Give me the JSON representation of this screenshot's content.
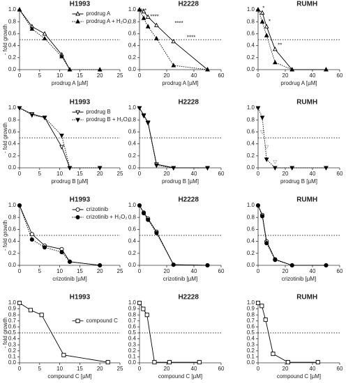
{
  "chart_data": [
    {
      "type": "line",
      "title": "H1993",
      "ylabel": "- fold growth",
      "xlabel": "prodrug A [µM]",
      "xlim": [
        0,
        25
      ],
      "xticks": [
        0,
        5,
        10,
        15,
        20,
        25
      ],
      "ylim": [
        0,
        1
      ],
      "yticks": [
        {
          "value": 0,
          "label": "0.0"
        },
        0.2,
        0.4,
        0.6,
        0.8,
        {
          "value": 1,
          "label": "1.0"
        }
      ],
      "hline": 0.5,
      "legend": "upper-right",
      "series": [
        {
          "name": "prodrug A",
          "color": "#000000",
          "marker": "triangle-up",
          "filled": false,
          "line_style": "solid",
          "x": [
            0,
            3.1,
            6.25,
            10.5,
            12.5
          ],
          "values": [
            1,
            0.72,
            0.6,
            0.25,
            0
          ]
        },
        {
          "name": "prodrug A + H₂O₂",
          "color": "#000000",
          "marker": "triangle-up",
          "filled": true,
          "line_style": "dotted",
          "x": [
            0,
            3.1,
            6.25,
            10.5,
            12.5,
            20
          ],
          "values": [
            1,
            0.68,
            0.52,
            0.22,
            0,
            0
          ]
        }
      ]
    },
    {
      "type": "line",
      "title": "H2228",
      "xlabel": "prodrug A [µM]",
      "xlim": [
        0,
        60
      ],
      "xticks": [
        0,
        20,
        40,
        60
      ],
      "ylim": [
        0,
        1
      ],
      "yticks": [
        {
          "value": 0,
          "label": "0.0"
        },
        0.2,
        0.4,
        0.6,
        0.8,
        {
          "value": 1,
          "label": "1.0"
        }
      ],
      "hline": 0.5,
      "series": [
        {
          "color": "#000000",
          "marker": "triangle-up",
          "filled": false,
          "line_style": "solid",
          "x": [
            0,
            3.1,
            6.25,
            12.5,
            25,
            50
          ],
          "values": [
            1,
            0.97,
            0.88,
            0.74,
            0.47,
            0
          ]
        },
        {
          "color": "#000000",
          "marker": "triangle-up",
          "filled": true,
          "line_style": "dotted",
          "x": [
            0,
            3.1,
            6.25,
            12.5,
            25,
            50
          ],
          "values": [
            1,
            0.86,
            0.72,
            0.52,
            0.07,
            0
          ]
        }
      ],
      "annotations": [
        {
          "text": "****",
          "x": 2,
          "y": 0.98
        },
        {
          "text": "****",
          "x": 11,
          "y": 0.88
        },
        {
          "text": "****",
          "x": 29,
          "y": 0.77
        },
        {
          "text": "****",
          "x": 38,
          "y": 0.53
        }
      ]
    },
    {
      "type": "line",
      "title": "RUMH",
      "xlabel": "prodrug A [µM]",
      "xlim": [
        0,
        60
      ],
      "xticks": [
        0,
        20,
        40,
        60
      ],
      "ylim": [
        0,
        1
      ],
      "yticks": [
        {
          "value": 0,
          "label": "0.0"
        },
        0.2,
        0.4,
        0.6,
        0.8,
        {
          "value": 1,
          "label": "1.0"
        }
      ],
      "hline": 0.5,
      "series": [
        {
          "color": "#000000",
          "marker": "triangle-up",
          "filled": false,
          "line_style": "solid",
          "x": [
            0,
            3.1,
            6.25,
            12.5,
            25,
            50
          ],
          "values": [
            1,
            0.95,
            0.72,
            0.34,
            0,
            0
          ]
        },
        {
          "color": "#000000",
          "marker": "triangle-up",
          "filled": true,
          "line_style": "dotted",
          "x": [
            0,
            3.1,
            6.25,
            12.5,
            25,
            50
          ],
          "values": [
            1,
            0.8,
            0.57,
            0.12,
            0,
            0
          ]
        }
      ],
      "annotations": [
        {
          "text": "*",
          "x": 4,
          "y": 1.02
        },
        {
          "text": "*",
          "x": 8.5,
          "y": 0.8
        },
        {
          "text": "**",
          "x": 16,
          "y": 0.4
        }
      ]
    },
    {
      "type": "line",
      "title": "H1993",
      "ylabel": "- fold growth",
      "xlabel": "prodrug B [µM]",
      "xlim": [
        0,
        25
      ],
      "xticks": [
        0,
        5,
        10,
        15,
        20,
        25
      ],
      "ylim": [
        0,
        1
      ],
      "yticks": [
        {
          "value": 0,
          "label": "0.0"
        },
        0.2,
        0.4,
        0.6,
        0.8,
        {
          "value": 1,
          "label": "1.0"
        }
      ],
      "hline": 0.5,
      "legend": "upper-right",
      "series": [
        {
          "name": "prodrug B",
          "color": "#000000",
          "marker": "triangle-down",
          "filled": false,
          "line_style": "solid",
          "x": [
            0,
            3.1,
            6.25,
            10.5,
            12.5
          ],
          "values": [
            1,
            0.9,
            0.84,
            0.35,
            0
          ]
        },
        {
          "name": "prodrug B + H₂O₂",
          "color": "#000000",
          "marker": "triangle-down",
          "filled": true,
          "line_style": "dotted",
          "x": [
            0,
            3.1,
            6.25,
            10.5,
            12.5,
            20
          ],
          "values": [
            1,
            0.88,
            0.84,
            0.54,
            0,
            0
          ]
        }
      ]
    },
    {
      "type": "line",
      "title": "H2228",
      "xlabel": "prodrug B [µM]",
      "xlim": [
        0,
        60
      ],
      "xticks": [
        0,
        20,
        40,
        60
      ],
      "ylim": [
        0,
        1
      ],
      "yticks": [
        {
          "value": 0,
          "label": "0.0"
        },
        0.2,
        0.4,
        0.6,
        0.8,
        {
          "value": 1,
          "label": "1.0"
        }
      ],
      "hline": 0.5,
      "series": [
        {
          "color": "#000000",
          "marker": "triangle-down",
          "filled": false,
          "line_style": "solid",
          "x": [
            0,
            3.1,
            6.25,
            12.5,
            25,
            50
          ],
          "values": [
            1,
            0.88,
            0.76,
            0.06,
            0,
            0
          ]
        },
        {
          "color": "#000000",
          "marker": "triangle-down",
          "filled": true,
          "line_style": "dotted",
          "x": [
            0,
            3.1,
            6.25,
            12.5,
            25,
            50
          ],
          "values": [
            1,
            0.87,
            0.75,
            0.04,
            0,
            0
          ]
        }
      ]
    },
    {
      "type": "line",
      "title": "RUMH",
      "xlabel": "prodrug B [µM]",
      "xlim": [
        0,
        60
      ],
      "xticks": [
        0,
        20,
        40,
        60
      ],
      "ylim": [
        0,
        1
      ],
      "yticks": [
        {
          "value": 0,
          "label": "0.0"
        },
        0.2,
        0.4,
        0.6,
        0.8,
        {
          "value": 1,
          "label": "1.0"
        }
      ],
      "hline": 0.5,
      "series": [
        {
          "color": "#bbbbbb",
          "marker": "triangle-down",
          "filled": false,
          "line_style": "none",
          "x": [
            3.1,
            6.25,
            12.5
          ],
          "values": [
            0.6,
            0.35,
            0.1
          ]
        },
        {
          "color": "#000000",
          "marker": "triangle-down",
          "filled": true,
          "line_style": "dotted",
          "x": [
            0,
            3.1,
            6.25,
            12.5,
            25,
            50
          ],
          "values": [
            1,
            0.84,
            0.14,
            0,
            0,
            0
          ]
        }
      ]
    },
    {
      "type": "line",
      "title": "H1993",
      "ylabel": "- fold growth",
      "xlabel": "crizotinib [µM]",
      "xlim": [
        0,
        25
      ],
      "xticks": [
        0,
        5,
        10,
        15,
        20,
        25
      ],
      "ylim": [
        0,
        1
      ],
      "yticks": [
        {
          "value": 0,
          "label": "0.0"
        },
        0.2,
        0.4,
        0.6,
        0.8,
        {
          "value": 1,
          "label": "1.0"
        }
      ],
      "hline": 0.5,
      "legend": "upper-right",
      "series": [
        {
          "name": "crizotinib",
          "color": "#000000",
          "marker": "circle",
          "filled": false,
          "line_style": "solid",
          "x": [
            0,
            3.1,
            6.25,
            10.5,
            12.5,
            20
          ],
          "values": [
            1,
            0.52,
            0.33,
            0.27,
            0.06,
            0
          ]
        },
        {
          "name": "crizotinib + H₂O₂",
          "color": "#000000",
          "marker": "circle",
          "filled": true,
          "line_style": "dotted",
          "x": [
            0,
            3.1,
            6.25,
            10.5,
            12.5,
            20
          ],
          "values": [
            1,
            0.43,
            0.3,
            0.22,
            0.06,
            0
          ]
        }
      ]
    },
    {
      "type": "line",
      "title": "H2228",
      "xlabel": "crizotinib [µM]",
      "xlim": [
        0,
        60
      ],
      "xticks": [
        0,
        20,
        40,
        60
      ],
      "ylim": [
        0,
        1
      ],
      "yticks": [
        {
          "value": 0,
          "label": "0.0"
        },
        0.2,
        0.4,
        0.6,
        0.8,
        {
          "value": 1,
          "label": "1.0"
        }
      ],
      "hline": 0.5,
      "series": [
        {
          "color": "#000000",
          "marker": "circle",
          "filled": false,
          "line_style": "solid",
          "x": [
            0,
            3.1,
            6.25,
            12.5,
            25,
            50
          ],
          "values": [
            1,
            0.88,
            0.78,
            0.56,
            0.01,
            0
          ]
        },
        {
          "color": "#000000",
          "marker": "circle",
          "filled": true,
          "line_style": "dotted",
          "x": [
            0,
            3.1,
            6.25,
            12.5,
            25,
            50
          ],
          "values": [
            1,
            0.87,
            0.76,
            0.54,
            0.01,
            0
          ]
        }
      ]
    },
    {
      "type": "line",
      "title": "RUMH",
      "xlabel": "crizotinib [µM]",
      "xlim": [
        0,
        60
      ],
      "xticks": [
        0,
        20,
        40,
        60
      ],
      "ylim": [
        0,
        1
      ],
      "yticks": [
        {
          "value": 0,
          "label": "0.0"
        },
        0.2,
        0.4,
        0.6,
        0.8,
        {
          "value": 1,
          "label": "1.0"
        }
      ],
      "hline": 0.5,
      "series": [
        {
          "color": "#000000",
          "marker": "circle",
          "filled": false,
          "line_style": "solid",
          "x": [
            0,
            3.1,
            6.25,
            12.5,
            25,
            50
          ],
          "values": [
            1,
            0.84,
            0.4,
            0.1,
            0,
            0
          ]
        },
        {
          "color": "#000000",
          "marker": "circle",
          "filled": true,
          "line_style": "dotted",
          "x": [
            0,
            3.1,
            6.25,
            12.5,
            25,
            50
          ],
          "values": [
            1,
            0.82,
            0.37,
            0.09,
            0,
            0
          ]
        }
      ]
    },
    {
      "type": "line",
      "title": "H1993",
      "ylabel": "- fold growth",
      "xlabel": "compound C [µM]",
      "xlim": [
        0,
        25
      ],
      "xticks": [
        0,
        5,
        10,
        15,
        20,
        25
      ],
      "ylim": [
        0,
        1
      ],
      "yticks": [
        {
          "value": 0,
          "label": "0.0"
        },
        0.1,
        0.2,
        0.3,
        0.4,
        0.5,
        0.6,
        0.7,
        0.8,
        0.9,
        {
          "value": 1,
          "label": "1.0"
        }
      ],
      "hline": 0.5,
      "legend": "middle",
      "series": [
        {
          "name": "compound C",
          "color": "#000000",
          "marker": "square",
          "filled": false,
          "line_style": "solid",
          "x": [
            0,
            2.75,
            5.5,
            11,
            22
          ],
          "values": [
            1,
            0.88,
            0.8,
            0.13,
            0.01
          ]
        }
      ]
    },
    {
      "type": "line",
      "title": "H2228",
      "xlabel": "compound C [µM]",
      "xlim": [
        0,
        60
      ],
      "xticks": [
        0,
        20,
        40,
        60
      ],
      "ylim": [
        0,
        1
      ],
      "yticks": [
        {
          "value": 0,
          "label": "0.0"
        },
        0.1,
        0.2,
        0.3,
        0.4,
        0.5,
        0.6,
        0.7,
        0.8,
        0.9,
        {
          "value": 1,
          "label": "1.0"
        }
      ],
      "hline": 0.5,
      "series": [
        {
          "color": "#000000",
          "marker": "square",
          "filled": false,
          "line_style": "solid",
          "x": [
            0,
            2.75,
            5.5,
            11,
            22,
            44
          ],
          "values": [
            1,
            0.9,
            0.8,
            0.01,
            0.01,
            0.01
          ]
        }
      ]
    },
    {
      "type": "line",
      "title": "RUMH",
      "xlabel": "compound C [µM]",
      "xlim": [
        0,
        60
      ],
      "xticks": [
        0,
        20,
        40,
        60
      ],
      "ylim": [
        0,
        1
      ],
      "yticks": [
        {
          "value": 0,
          "label": "0.0"
        },
        0.1,
        0.2,
        0.3,
        0.4,
        0.5,
        0.6,
        0.7,
        0.8,
        0.9,
        {
          "value": 1,
          "label": "1.0"
        }
      ],
      "hline": 0.5,
      "series": [
        {
          "color": "#000000",
          "marker": "square",
          "filled": false,
          "line_style": "solid",
          "x": [
            0,
            2.75,
            5.5,
            11,
            22,
            44
          ],
          "values": [
            1,
            0.95,
            0.72,
            0.15,
            0.01,
            0.01
          ]
        }
      ]
    }
  ]
}
